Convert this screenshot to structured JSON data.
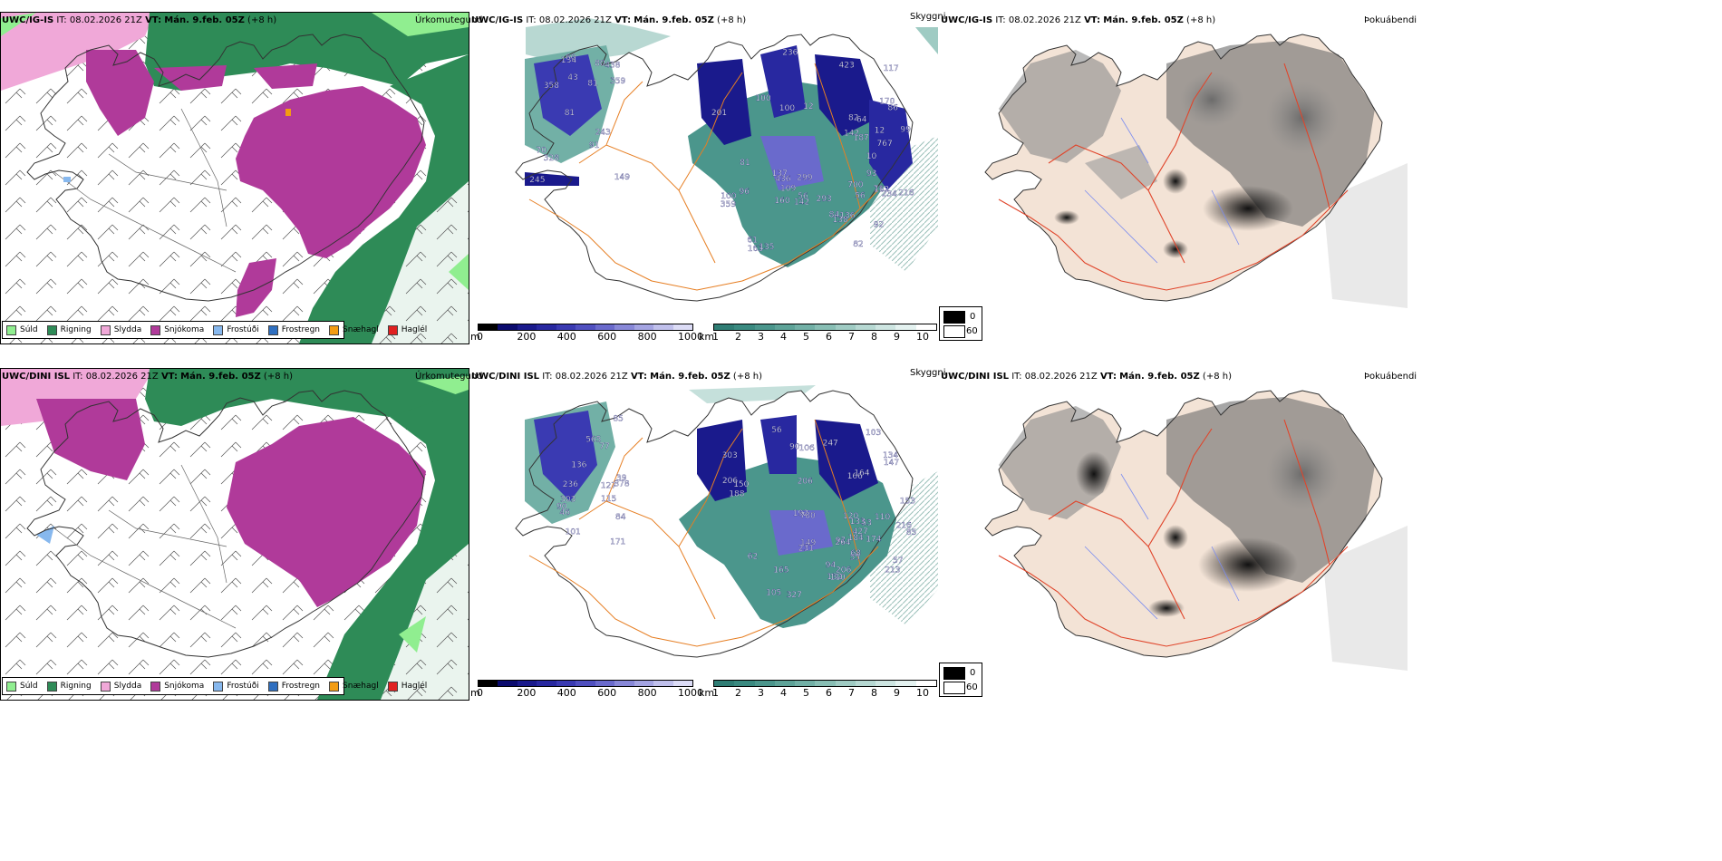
{
  "rows": [
    {
      "model": "UWC/IG-IS",
      "it_label": "IT:",
      "it_value": "08.02.2026 21Z",
      "vt_label": "VT:",
      "vt_value": "Mán. 9.feb. 05Z",
      "lead": "(+8 h)"
    },
    {
      "model": "UWC/DINI ISL",
      "it_label": "IT:",
      "it_value": "08.02.2026 21Z",
      "vt_label": "VT:",
      "vt_value": "Mán. 9.feb. 05Z",
      "lead": "(+8 h)"
    }
  ],
  "fields": {
    "precip": "Úrkomutegund",
    "visibility": "Skyggni",
    "fog": "Þokuábendi"
  },
  "precip_legend": [
    {
      "label": "Súld",
      "color": "#90ee90"
    },
    {
      "label": "Rigning",
      "color": "#2e8b57"
    },
    {
      "label": "Slydda",
      "color": "#f0a8d8"
    },
    {
      "label": "Snjókoma",
      "color": "#b03a9a"
    },
    {
      "label": "Frostúði",
      "color": "#87b8ee"
    },
    {
      "label": "Frostregn",
      "color": "#2f6fc0"
    },
    {
      "label": "Snæhagl",
      "color": "#f39c12"
    },
    {
      "label": "Haglél",
      "color": "#e02020"
    }
  ],
  "ceiling_colorbar": {
    "unit": "m",
    "ticks": [
      "0",
      "200",
      "400",
      "600",
      "800",
      "1000"
    ],
    "colors": [
      "#000000",
      "#0b0b6e",
      "#1a1a8c",
      "#2828a0",
      "#3a3ab2",
      "#5050c0",
      "#6a6acc",
      "#8888d8",
      "#a4a4e2",
      "#c0c0ec",
      "#dcdcf6"
    ]
  },
  "vis_colorbar": {
    "unit": "km",
    "ticks": [
      "1",
      "2",
      "3",
      "4",
      "5",
      "6",
      "7",
      "8",
      "9",
      "10"
    ],
    "colors": [
      "#2f7d74",
      "#3a8a80",
      "#4b968c",
      "#5ea398",
      "#72b0a6",
      "#88beb4",
      "#9fcbc3",
      "#b6d8d2",
      "#cde5e1",
      "#e4f2f0",
      "#ffffff"
    ]
  },
  "fog_legend": {
    "low": "0",
    "high": "60",
    "low_color": "#000000",
    "high_color": "#ffffff"
  },
  "ceiling_labels_top": [
    "149",
    "201",
    "93",
    "10",
    "81",
    "100",
    "299",
    "12",
    "70",
    "100",
    "61",
    "56",
    "43",
    "12",
    "136",
    "82",
    "60",
    "86",
    "84",
    "99",
    "81",
    "137",
    "56",
    "64",
    "80",
    "81",
    "82",
    "216",
    "243",
    "142",
    "109",
    "187",
    "91",
    "96",
    "71",
    "767",
    "245",
    "436",
    "293",
    "700",
    "359",
    "117",
    "138",
    "234",
    "328",
    "359",
    "163",
    "162",
    "438",
    "236",
    "160",
    "142",
    "358",
    "423",
    "135",
    "170",
    "134",
    "100",
    "92"
  ],
  "ceiling_labels_bottom": [
    "171",
    "188",
    "132",
    "166",
    "84",
    "303",
    "105",
    "53",
    "77",
    "90",
    "97",
    "57",
    "46",
    "56",
    "94",
    "184",
    "127",
    "206",
    "62",
    "55",
    "85",
    "106",
    "68",
    "85",
    "39",
    "206",
    "165",
    "110",
    "136",
    "103",
    "110",
    "133",
    "90",
    "247",
    "149",
    "216",
    "378",
    "264",
    "427",
    "213",
    "303",
    "780",
    "327",
    "134",
    "236",
    "150",
    "174",
    "147",
    "565",
    "192",
    "206",
    "153",
    "115",
    "164",
    "231",
    "120",
    "101"
  ]
}
